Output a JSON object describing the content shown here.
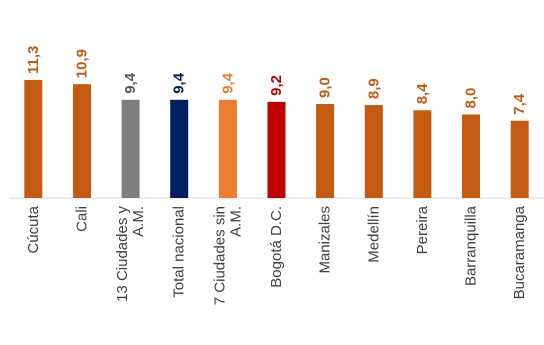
{
  "chart_data": {
    "type": "bar",
    "categories": [
      [
        "Cúcuta"
      ],
      [
        "Cali"
      ],
      [
        "13 Ciudades y",
        "A.M."
      ],
      [
        "Total nacional"
      ],
      [
        "7 Ciudades sin",
        "A.M."
      ],
      [
        "Bogotá D.C."
      ],
      [
        "Manizales"
      ],
      [
        "Medellín"
      ],
      [
        "Pereira"
      ],
      [
        "Barranquilla"
      ],
      [
        "Bucaramanga"
      ]
    ],
    "values": [
      11.3,
      10.9,
      9.4,
      9.4,
      9.4,
      9.2,
      9.0,
      8.9,
      8.4,
      8.0,
      7.4
    ],
    "value_labels": [
      "11,3",
      "10,9",
      "9,4",
      "9,4",
      "9,4",
      "9,2",
      "9,0",
      "8,9",
      "8,4",
      "8,0",
      "7,4"
    ],
    "colors": [
      "#c55a11",
      "#c55a11",
      "#7f7f7f",
      "#002060",
      "#ed7d31",
      "#c00000",
      "#c55a11",
      "#c55a11",
      "#c55a11",
      "#c55a11",
      "#c55a11"
    ],
    "label_colors": [
      "#c55a11",
      "#c55a11",
      "#595959",
      "#002060",
      "#ed7d31",
      "#c00000",
      "#c55a11",
      "#c55a11",
      "#c55a11",
      "#c55a11",
      "#c55a11"
    ],
    "ylim": [
      0,
      11.3
    ],
    "grid": false,
    "title": "",
    "xlabel": "",
    "ylabel": ""
  }
}
